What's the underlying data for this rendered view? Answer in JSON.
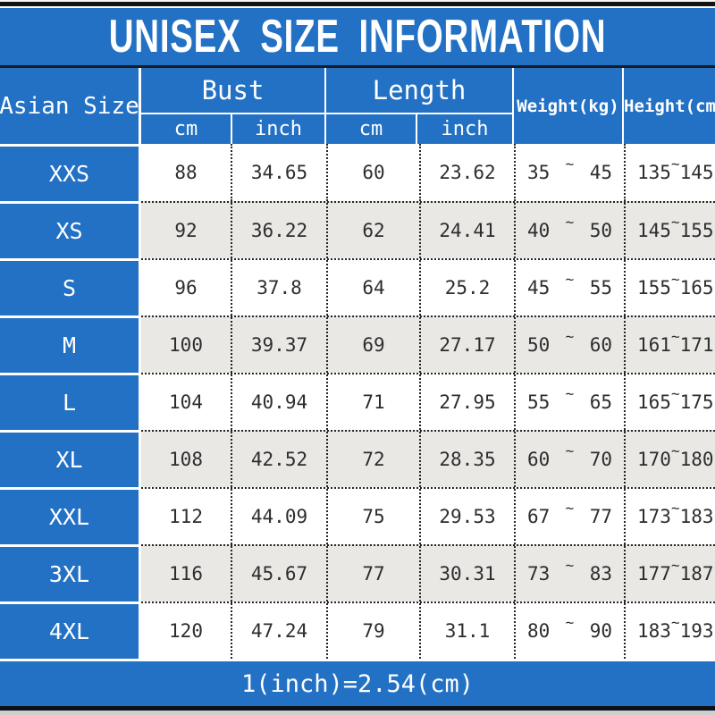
{
  "title": "UNISEX SIZE INFORMATION",
  "colors": {
    "accent_blue": "#2371c4",
    "row_alt_gray": "#e9e8e5",
    "text_dark": "#2d2d2d"
  },
  "header": {
    "size": "Asian Size",
    "bust": "Bust",
    "length": "Length",
    "cm": "cm",
    "inch": "inch",
    "weight": "Weight(kg)",
    "height": "Height(cm)"
  },
  "sym": {
    "tilde": "~"
  },
  "rows": [
    {
      "size": "XXS",
      "bust_cm": "88",
      "bust_inch": "34.65",
      "len_cm": "60",
      "len_inch": "23.62",
      "weight_min": "35",
      "weight_max": "45",
      "height_min": "135",
      "height_max": "145"
    },
    {
      "size": "XS",
      "bust_cm": "92",
      "bust_inch": "36.22",
      "len_cm": "62",
      "len_inch": "24.41",
      "weight_min": "40",
      "weight_max": "50",
      "height_min": "145",
      "height_max": "155"
    },
    {
      "size": "S",
      "bust_cm": "96",
      "bust_inch": "37.8",
      "len_cm": "64",
      "len_inch": "25.2",
      "weight_min": "45",
      "weight_max": "55",
      "height_min": "155",
      "height_max": "165"
    },
    {
      "size": "M",
      "bust_cm": "100",
      "bust_inch": "39.37",
      "len_cm": "69",
      "len_inch": "27.17",
      "weight_min": "50",
      "weight_max": "60",
      "height_min": "161",
      "height_max": "171"
    },
    {
      "size": "L",
      "bust_cm": "104",
      "bust_inch": "40.94",
      "len_cm": "71",
      "len_inch": "27.95",
      "weight_min": "55",
      "weight_max": "65",
      "height_min": "165",
      "height_max": "175"
    },
    {
      "size": "XL",
      "bust_cm": "108",
      "bust_inch": "42.52",
      "len_cm": "72",
      "len_inch": "28.35",
      "weight_min": "60",
      "weight_max": "70",
      "height_min": "170",
      "height_max": "180"
    },
    {
      "size": "XXL",
      "bust_cm": "112",
      "bust_inch": "44.09",
      "len_cm": "75",
      "len_inch": "29.53",
      "weight_min": "67",
      "weight_max": "77",
      "height_min": "173",
      "height_max": "183"
    },
    {
      "size": "3XL",
      "bust_cm": "116",
      "bust_inch": "45.67",
      "len_cm": "77",
      "len_inch": "30.31",
      "weight_min": "73",
      "weight_max": "83",
      "height_min": "177",
      "height_max": "187"
    },
    {
      "size": "4XL",
      "bust_cm": "120",
      "bust_inch": "47.24",
      "len_cm": "79",
      "len_inch": "31.1",
      "weight_min": "80",
      "weight_max": "90",
      "height_min": "183",
      "height_max": "193"
    }
  ],
  "footer": {
    "note": "1(inch)=2.54(cm)"
  },
  "chart_data": {
    "type": "table",
    "title": "UNISEX SIZE INFORMATION",
    "column_groups": [
      {
        "label": "Bust",
        "children": [
          "cm",
          "inch"
        ]
      },
      {
        "label": "Length",
        "children": [
          "cm",
          "inch"
        ]
      }
    ],
    "columns": [
      "Asian Size",
      "Bust (cm)",
      "Bust (inch)",
      "Length (cm)",
      "Length (inch)",
      "Weight(kg)",
      "Height(cm)"
    ],
    "rows": [
      [
        "XXS",
        "88",
        "34.65",
        "60",
        "23.62",
        "35~45",
        "135~145"
      ],
      [
        "XS",
        "92",
        "36.22",
        "62",
        "24.41",
        "40~50",
        "145~155"
      ],
      [
        "S",
        "96",
        "37.8",
        "64",
        "25.2",
        "45~55",
        "155~165"
      ],
      [
        "M",
        "100",
        "39.37",
        "69",
        "27.17",
        "50~60",
        "161~171"
      ],
      [
        "L",
        "104",
        "40.94",
        "71",
        "27.95",
        "55~65",
        "165~175"
      ],
      [
        "XL",
        "108",
        "42.52",
        "72",
        "28.35",
        "60~70",
        "170~180"
      ],
      [
        "XXL",
        "112",
        "44.09",
        "75",
        "29.53",
        "67~77",
        "173~183"
      ],
      [
        "3XL",
        "116",
        "45.67",
        "77",
        "30.31",
        "73~83",
        "177~187"
      ],
      [
        "4XL",
        "120",
        "47.24",
        "79",
        "31.1",
        "80~90",
        "183~193"
      ]
    ],
    "footnote": "1(inch)=2.54(cm)",
    "layout": "alternating row shading (white/gray), blue header band, dotted cell separators"
  }
}
